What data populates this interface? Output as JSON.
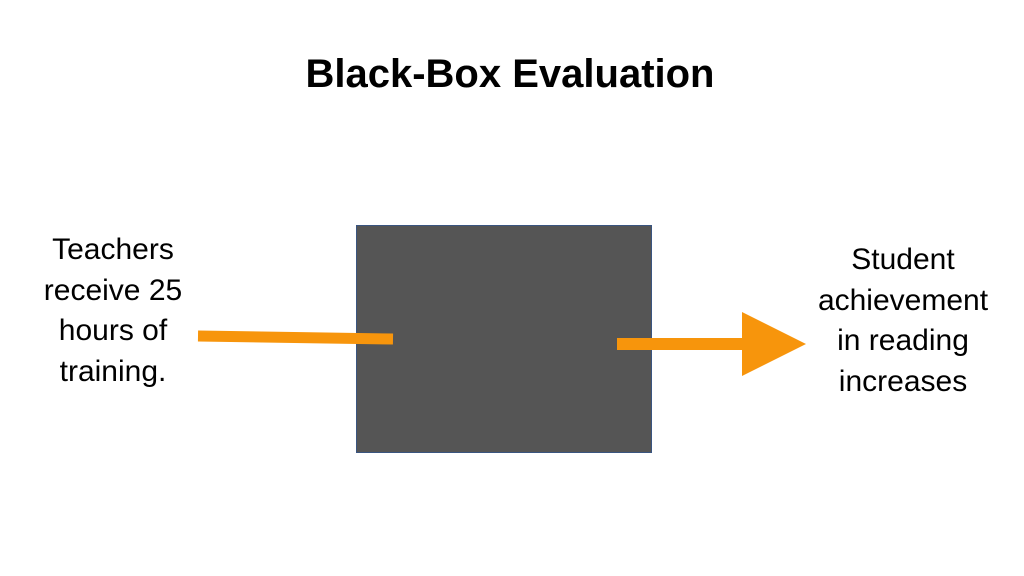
{
  "slide": {
    "title": "Black-Box Evaluation"
  },
  "input": {
    "lines": [
      "Teachers",
      "receive 25",
      "hours of",
      "training."
    ]
  },
  "output": {
    "lines": [
      "Student",
      "achievement",
      "in reading",
      "increases"
    ]
  },
  "colors": {
    "arrow": "#F7950C",
    "box_fill": "#555555",
    "box_border": "#3A5580",
    "text": "#000000",
    "background": "#FFFFFF"
  }
}
